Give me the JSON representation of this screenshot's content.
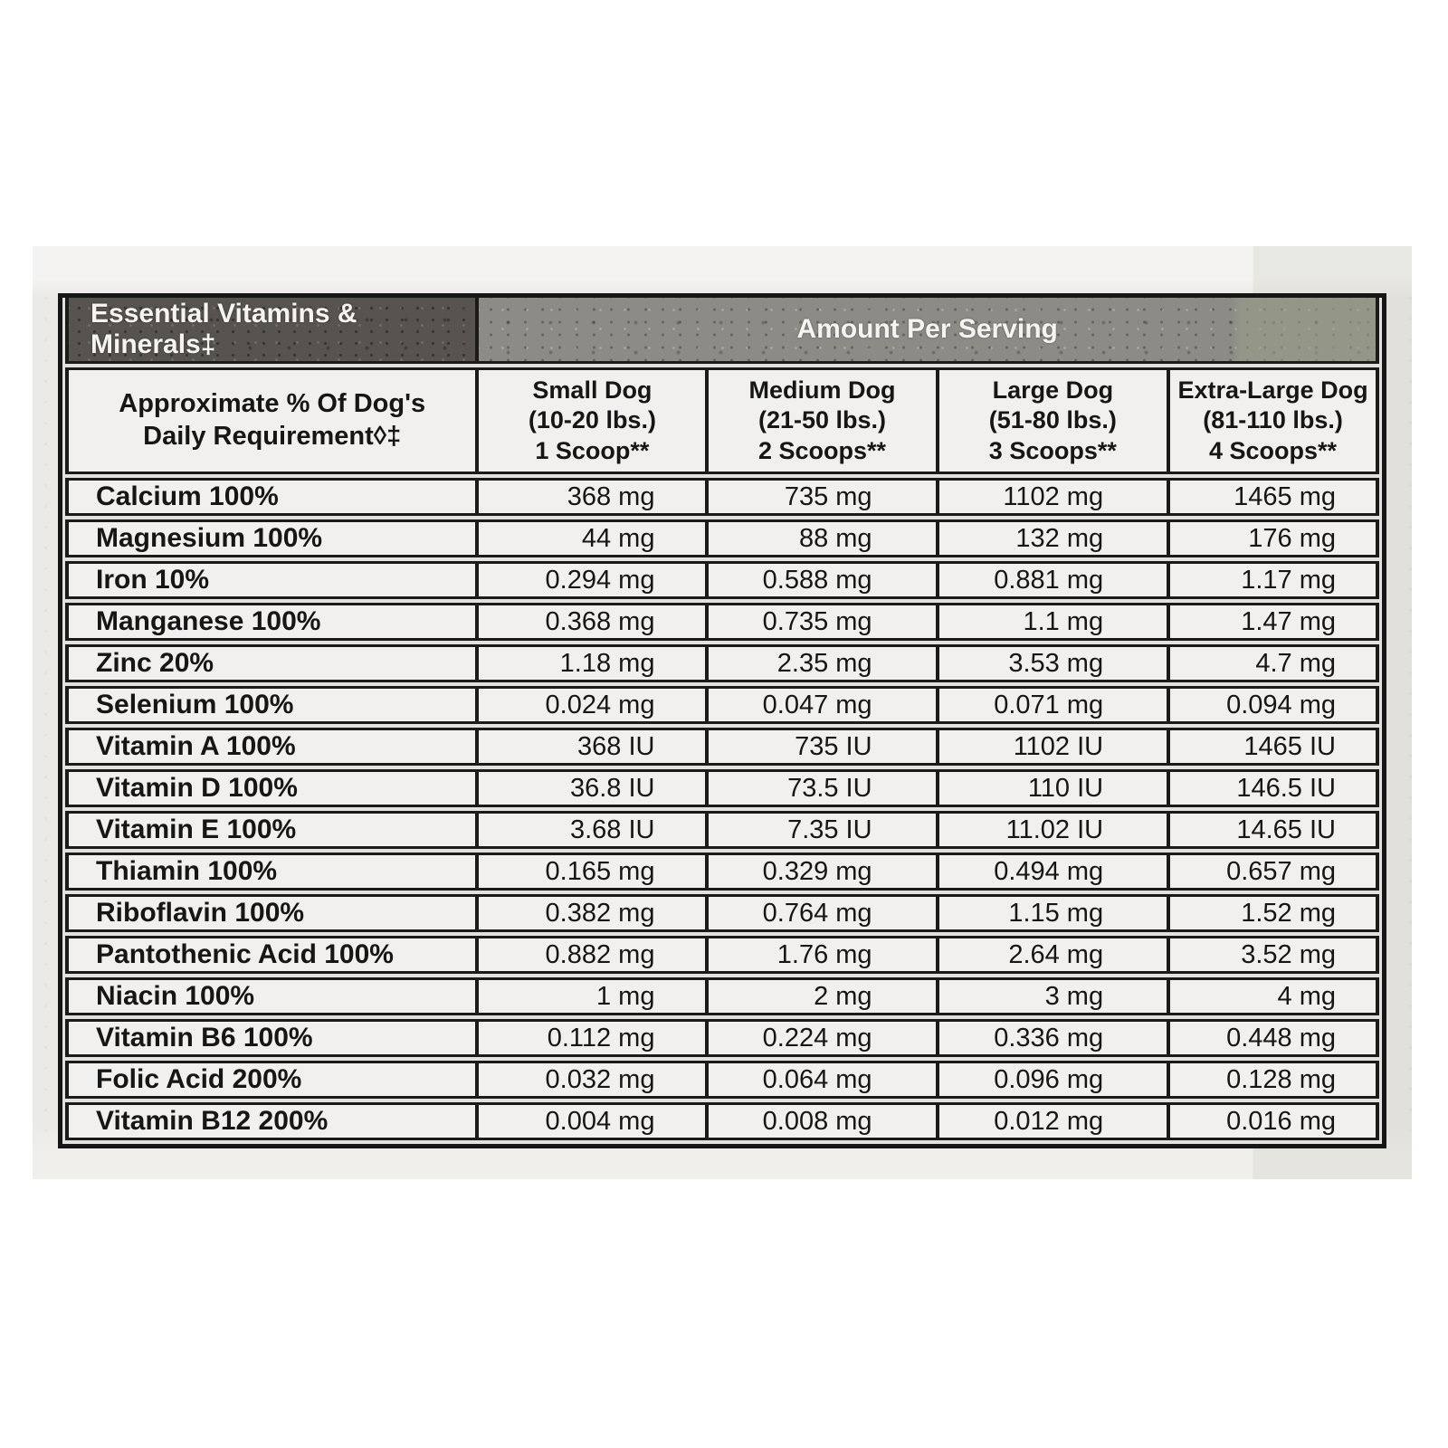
{
  "table": {
    "title": "Essential Vitamins & Minerals‡",
    "amount_header": "Amount Per Serving",
    "columns": [
      {
        "lines": [
          "Approximate % Of Dog's",
          "Daily Requirement◊‡"
        ]
      },
      {
        "lines": [
          "Small Dog",
          "(10-20 lbs.)",
          "1 Scoop**"
        ]
      },
      {
        "lines": [
          "Medium Dog",
          "(21-50 lbs.)",
          "2 Scoops**"
        ]
      },
      {
        "lines": [
          "Large Dog",
          "(51-80 lbs.)",
          "3 Scoops**"
        ]
      },
      {
        "lines": [
          "Extra-Large Dog",
          "(81-110 lbs.)",
          "4 Scoops**"
        ]
      }
    ],
    "rows": [
      {
        "label": "Calcium 100%",
        "values": [
          "368 mg",
          "735 mg",
          "1102 mg",
          "1465 mg"
        ]
      },
      {
        "label": "Magnesium 100%",
        "values": [
          "44 mg",
          "88 mg",
          "132 mg",
          "176 mg"
        ]
      },
      {
        "label": "Iron 10%",
        "values": [
          "0.294 mg",
          "0.588 mg",
          "0.881 mg",
          "1.17 mg"
        ]
      },
      {
        "label": "Manganese 100%",
        "values": [
          "0.368 mg",
          "0.735 mg",
          "1.1 mg",
          "1.47 mg"
        ]
      },
      {
        "label": "Zinc 20%",
        "values": [
          "1.18 mg",
          "2.35 mg",
          "3.53 mg",
          "4.7 mg"
        ]
      },
      {
        "label": "Selenium 100%",
        "values": [
          "0.024 mg",
          "0.047 mg",
          "0.071 mg",
          "0.094 mg"
        ]
      },
      {
        "label": "Vitamin A 100%",
        "values": [
          "368 IU",
          "735 IU",
          "1102 IU",
          "1465 IU"
        ]
      },
      {
        "label": "Vitamin D 100%",
        "values": [
          "36.8 IU",
          "73.5 IU",
          "110 IU",
          "146.5 IU"
        ]
      },
      {
        "label": "Vitamin E 100%",
        "values": [
          "3.68 IU",
          "7.35 IU",
          "11.02 IU",
          "14.65 IU"
        ]
      },
      {
        "label": "Thiamin 100%",
        "values": [
          "0.165 mg",
          "0.329 mg",
          "0.494 mg",
          "0.657 mg"
        ]
      },
      {
        "label": "Riboflavin 100%",
        "values": [
          "0.382 mg",
          "0.764 mg",
          "1.15 mg",
          "1.52 mg"
        ]
      },
      {
        "label": "Pantothenic Acid 100%",
        "values": [
          "0.882 mg",
          "1.76 mg",
          "2.64 mg",
          "3.52 mg"
        ]
      },
      {
        "label": "Niacin 100%",
        "values": [
          "1 mg",
          "2 mg",
          "3 mg",
          "4 mg"
        ]
      },
      {
        "label": "Vitamin B6 100%",
        "values": [
          "0.112 mg",
          "0.224 mg",
          "0.336 mg",
          "0.448 mg"
        ]
      },
      {
        "label": "Folic Acid 200%",
        "values": [
          "0.032 mg",
          "0.064 mg",
          "0.096 mg",
          "0.128 mg"
        ]
      },
      {
        "label": "Vitamin B12 200%",
        "values": [
          "0.004 mg",
          "0.008 mg",
          "0.012 mg",
          "0.016 mg"
        ]
      }
    ]
  },
  "colors": {
    "header_dark": "#57534e",
    "header_band": "#8d8b86",
    "band_right_tint": "#9aa08a",
    "cell_background": "#f1f0ee",
    "label_background": "#eceae7",
    "border": "#1c1b1a",
    "text": "#161616",
    "band_text": "#f5f4f2"
  }
}
